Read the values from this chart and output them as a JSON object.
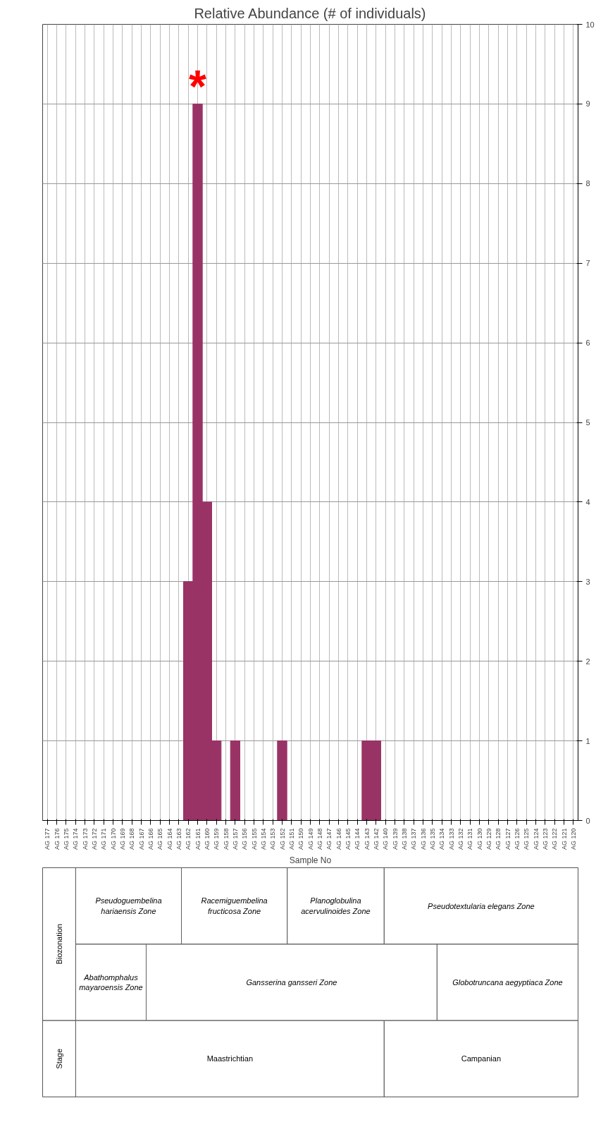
{
  "chart_data": {
    "type": "bar",
    "title": "Relative Abundance (# of individuals)",
    "xlabel": "Sample No",
    "categories": [
      "AG 177",
      "AG 176",
      "AG 175",
      "AG 174",
      "AG 173",
      "AG 172",
      "AG 171",
      "AG 170",
      "AG 169",
      "AG 168",
      "AG 167",
      "AG 166",
      "AG 165",
      "AG 164",
      "AG 163",
      "AG 162",
      "AG 161",
      "AG 160",
      "AG 159",
      "AG 158",
      "AG 157",
      "AG 156",
      "AG 155",
      "AG 154",
      "AG 153",
      "AG 152",
      "AG 151",
      "AG 150",
      "AG 149",
      "AG 148",
      "AG 147",
      "AG 146",
      "AG 145",
      "AG 144",
      "AG 143",
      "AG 142",
      "AG 140",
      "AG 139",
      "AG 138",
      "AG 137",
      "AG 136",
      "AG 135",
      "AG 134",
      "AG 133",
      "AG 132",
      "AG 131",
      "AG 130",
      "AG 129",
      "AG 128",
      "AG 127",
      "AG 126",
      "AG 125",
      "AG 124",
      "AG 123",
      "AG 122",
      "AG 121",
      "AG 120"
    ],
    "values": [
      0,
      0,
      0,
      0,
      0,
      0,
      0,
      0,
      0,
      0,
      0,
      0,
      0,
      0,
      0,
      3,
      9,
      4,
      1,
      0,
      1,
      0,
      0,
      0,
      0,
      1,
      0,
      0,
      0,
      0,
      0,
      0,
      0,
      0,
      1,
      1,
      0,
      0,
      0,
      0,
      0,
      0,
      0,
      0,
      0,
      0,
      0,
      0,
      0,
      0,
      0,
      0,
      0,
      0,
      0,
      0,
      0
    ],
    "color": "#993366",
    "ylim": [
      0,
      10
    ],
    "yticks": [
      0,
      1,
      2,
      3,
      4,
      5,
      6,
      7,
      8,
      9,
      10
    ],
    "grid": true,
    "annotations": [
      {
        "text": "*",
        "x": "AG 161",
        "y": 9
      },
      "Pseudoguembelina hariaensis Zone",
      "Racemiguembelina fructicosa Zone",
      "Planoglobulina acervulinoides Zone",
      "Pseudotextularia elegans Zone",
      "Abathomphalus mayaroensis Zone",
      "Gansserina gansseri Zone",
      "Globotruncana aegyptiaca Zone",
      "Maastrichtian",
      "Campanian",
      "Biozonation",
      "Stage"
    ]
  }
}
